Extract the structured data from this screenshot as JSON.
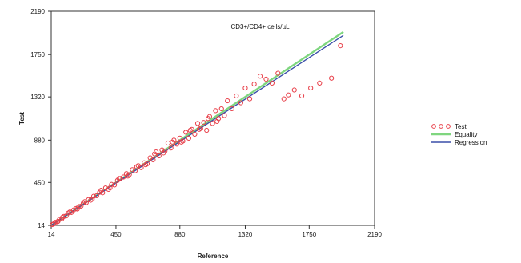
{
  "chart_data": {
    "type": "scatter",
    "xlabel": "Reference",
    "ylabel": "Test",
    "annotation": "CD3+/CD4+ cells/µL",
    "xlim": [
      14,
      2190
    ],
    "ylim": [
      14,
      2190
    ],
    "xticks": [
      14,
      450,
      880,
      1320,
      1750,
      2190
    ],
    "yticks": [
      14,
      450,
      880,
      1320,
      1750,
      2190
    ],
    "grid": false,
    "legend_position": "right",
    "series": [
      {
        "name": "Test",
        "kind": "points",
        "color": "#e8404a",
        "x": [
          20,
          30,
          40,
          55,
          70,
          85,
          100,
          115,
          130,
          150,
          165,
          180,
          200,
          215,
          230,
          250,
          265,
          280,
          300,
          320,
          340,
          360,
          380,
          400,
          420,
          440,
          460,
          480,
          500,
          520,
          540,
          560,
          580,
          600,
          620,
          640,
          660,
          680,
          700,
          720,
          740,
          760,
          780,
          800,
          820,
          840,
          860,
          880,
          900,
          920,
          940,
          960,
          980,
          1000,
          1020,
          1040,
          1060,
          1080,
          1100,
          1120,
          1140,
          1160,
          1180,
          1200,
          1230,
          1260,
          1290,
          1320,
          1350,
          1380,
          1420,
          1460,
          1500,
          1540,
          1580,
          1610,
          1650,
          1700,
          1760,
          1820,
          1900,
          1960,
          60,
          90,
          140,
          190,
          240,
          290,
          350,
          410,
          470,
          530,
          590,
          650,
          710,
          770,
          830,
          890,
          950,
          1010,
          1070,
          1130
        ],
        "y": [
          22,
          28,
          45,
          50,
          75,
          80,
          105,
          110,
          140,
          145,
          170,
          185,
          205,
          210,
          240,
          245,
          275,
          270,
          310,
          315,
          350,
          345,
          395,
          380,
          430,
          425,
          470,
          490,
          505,
          540,
          530,
          580,
          570,
          620,
          600,
          650,
          640,
          700,
          680,
          760,
          720,
          780,
          770,
          850,
          800,
          880,
          840,
          900,
          870,
          960,
          900,
          990,
          940,
          1050,
          1000,
          1060,
          980,
          1120,
          1050,
          1180,
          1100,
          1200,
          1130,
          1280,
          1200,
          1330,
          1260,
          1410,
          1300,
          1450,
          1530,
          1500,
          1460,
          1560,
          1300,
          1340,
          1390,
          1330,
          1410,
          1460,
          1510,
          1840,
          55,
          95,
          150,
          180,
          255,
          280,
          370,
          395,
          490,
          515,
          610,
          630,
          740,
          750,
          860,
          860,
          980,
          990,
          1100,
          1070
        ]
      },
      {
        "name": "Equality",
        "kind": "line",
        "color": "#7fd67f",
        "x": [
          14,
          1980
        ],
        "y": [
          14,
          1980
        ]
      },
      {
        "name": "Regression",
        "kind": "line",
        "color": "#3a4fa8",
        "x": [
          14,
          1980
        ],
        "y": [
          16,
          1945
        ]
      }
    ]
  }
}
